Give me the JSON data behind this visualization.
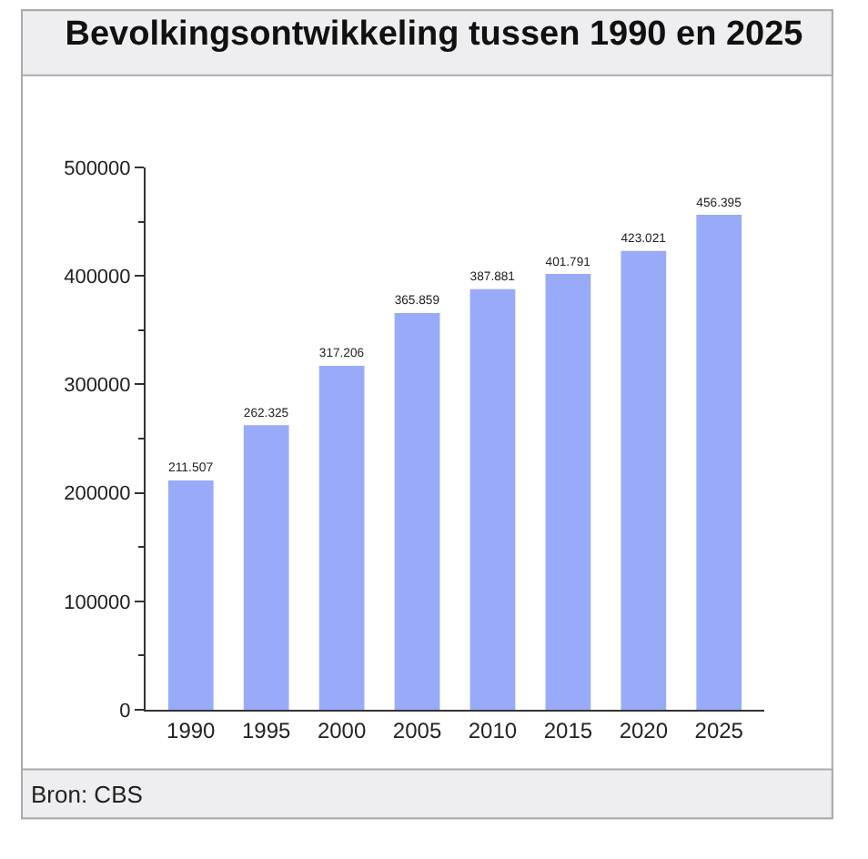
{
  "chart_data": {
    "type": "bar",
    "title": "Bevolkingsontwikkeling tussen 1990 en 2025",
    "categories": [
      "1990",
      "1995",
      "2000",
      "2005",
      "2010",
      "2015",
      "2020",
      "2025"
    ],
    "values": [
      211507,
      262325,
      317206,
      365859,
      387881,
      401791,
      423021,
      456395
    ],
    "value_labels": [
      "211.507",
      "262.325",
      "317.206",
      "365.859",
      "387.881",
      "401.791",
      "423.021",
      "456.395"
    ],
    "color": "#99abf8",
    "ylim": [
      0,
      500000
    ],
    "yticks": [
      0,
      100000,
      200000,
      300000,
      400000,
      500000
    ],
    "annotations": [
      "Bron: CBS"
    ]
  }
}
